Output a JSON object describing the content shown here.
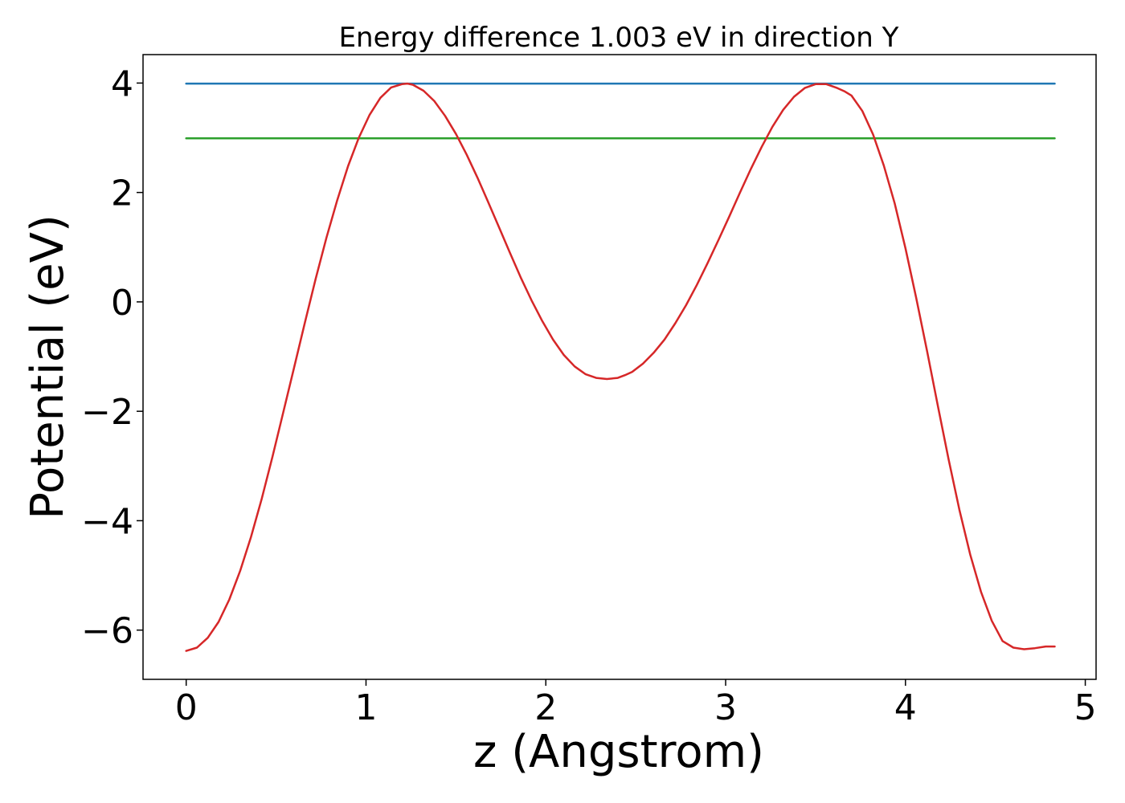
{
  "chart_data": {
    "type": "line",
    "title": "Energy difference 1.003 eV in direction Y",
    "xlabel": "z (Angstrom)",
    "ylabel": "Potential (eV)",
    "xlim": [
      -0.24,
      5.06
    ],
    "ylim": [
      -6.9,
      4.52
    ],
    "xticks": [
      0,
      1,
      2,
      3,
      4,
      5
    ],
    "xtick_labels": [
      "0",
      "1",
      "2",
      "3",
      "4",
      "5"
    ],
    "yticks": [
      4,
      2,
      0,
      -2,
      -4,
      -6
    ],
    "ytick_labels": [
      "4",
      "2",
      "0",
      "−2",
      "−4",
      "−6"
    ],
    "grid": false,
    "series": [
      {
        "color": "#1f77b4",
        "x": [
          0,
          4.83
        ],
        "y": [
          3.99,
          3.99
        ]
      },
      {
        "color": "#2ca02c",
        "x": [
          0,
          4.83
        ],
        "y": [
          2.99,
          2.99
        ]
      },
      {
        "color": "#d62728",
        "x": [
          0,
          0.06,
          0.12,
          0.18,
          0.24,
          0.3,
          0.36,
          0.42,
          0.48,
          0.54,
          0.6,
          0.66,
          0.72,
          0.78,
          0.84,
          0.9,
          0.96,
          1.02,
          1.08,
          1.14,
          1.2,
          1.23,
          1.26,
          1.32,
          1.38,
          1.44,
          1.5,
          1.56,
          1.62,
          1.68,
          1.74,
          1.8,
          1.86,
          1.92,
          1.98,
          2.04,
          2.1,
          2.16,
          2.22,
          2.28,
          2.34,
          2.4,
          2.44,
          2.48,
          2.54,
          2.6,
          2.66,
          2.72,
          2.78,
          2.84,
          2.9,
          2.96,
          3.02,
          3.08,
          3.14,
          3.2,
          3.26,
          3.32,
          3.38,
          3.44,
          3.5,
          3.56,
          3.62,
          3.66,
          3.7,
          3.76,
          3.82,
          3.88,
          3.94,
          4.0,
          4.06,
          4.12,
          4.18,
          4.24,
          4.3,
          4.36,
          4.42,
          4.48,
          4.54,
          4.6,
          4.66,
          4.72,
          4.78,
          4.83
        ],
        "y": [
          -6.38,
          -6.32,
          -6.14,
          -5.85,
          -5.44,
          -4.92,
          -4.3,
          -3.6,
          -2.83,
          -2.02,
          -1.2,
          -0.38,
          0.42,
          1.17,
          1.86,
          2.48,
          3.0,
          3.42,
          3.73,
          3.92,
          3.98,
          3.99,
          3.97,
          3.86,
          3.67,
          3.4,
          3.07,
          2.69,
          2.27,
          1.82,
          1.36,
          0.9,
          0.45,
          0.03,
          -0.35,
          -0.69,
          -0.97,
          -1.18,
          -1.32,
          -1.39,
          -1.41,
          -1.39,
          -1.34,
          -1.28,
          -1.13,
          -0.93,
          -0.69,
          -0.39,
          -0.06,
          0.31,
          0.71,
          1.13,
          1.56,
          2.0,
          2.43,
          2.83,
          3.2,
          3.51,
          3.75,
          3.91,
          3.98,
          3.98,
          3.91,
          3.85,
          3.77,
          3.49,
          3.06,
          2.49,
          1.8,
          0.98,
          0.07,
          -0.9,
          -1.9,
          -2.88,
          -3.8,
          -4.62,
          -5.3,
          -5.83,
          -6.2,
          -6.32,
          -6.35,
          -6.33,
          -6.3,
          -6.3
        ]
      }
    ]
  }
}
